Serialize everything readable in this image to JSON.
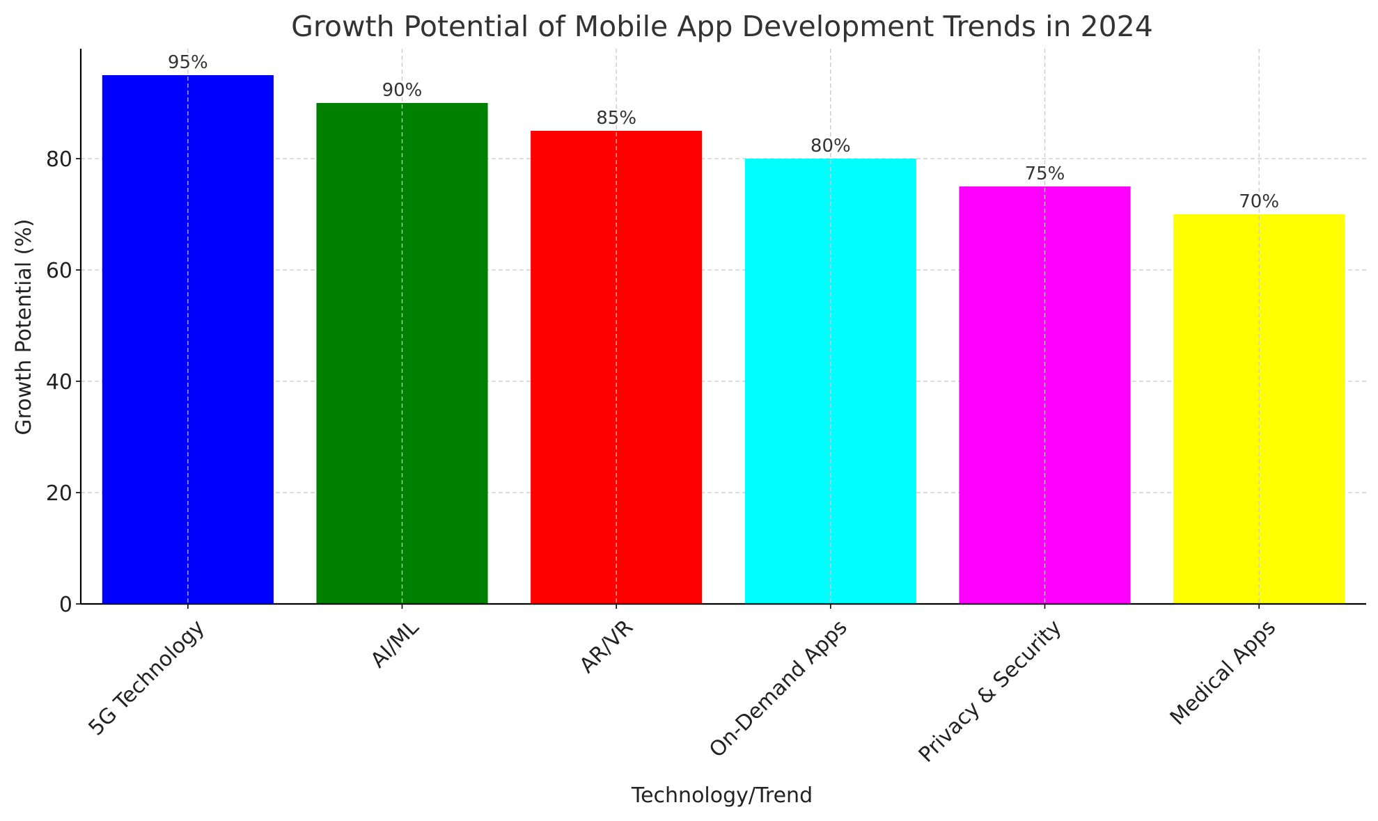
{
  "chart_data": {
    "type": "bar",
    "title": "Growth Potential of Mobile App Development Trends in 2024",
    "xlabel": "Technology/Trend",
    "ylabel": "Growth Potential (%)",
    "categories": [
      "5G Technology",
      "AI/ML",
      "AR/VR",
      "On-Demand Apps",
      "Privacy & Security",
      "Medical Apps"
    ],
    "values": [
      95,
      90,
      85,
      80,
      75,
      70
    ],
    "value_labels": [
      "95%",
      "90%",
      "85%",
      "80%",
      "75%",
      "70%"
    ],
    "colors": [
      "#0000ff",
      "#008000",
      "#ff0000",
      "#00ffff",
      "#ff00ff",
      "#ffff00"
    ],
    "ylim": [
      0,
      99.75
    ],
    "yticks": [
      0,
      20,
      40,
      60,
      80
    ],
    "grid": true,
    "legend": "none"
  }
}
